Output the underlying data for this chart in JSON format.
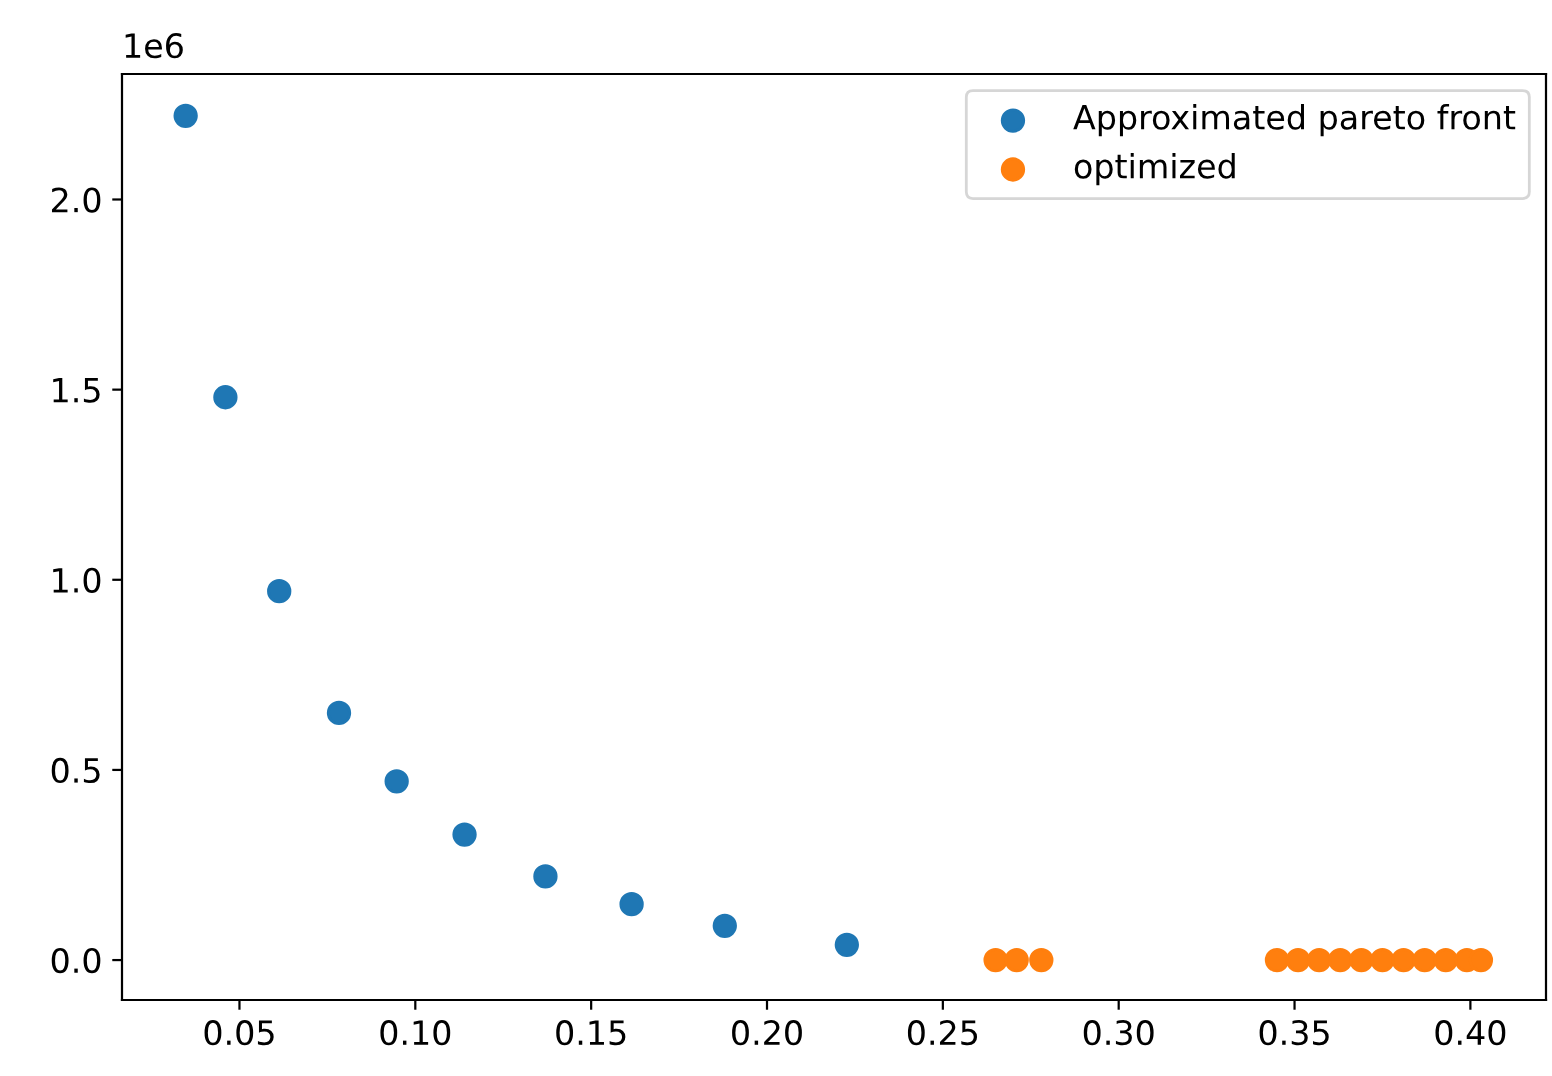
{
  "chart_data": {
    "type": "scatter",
    "annotations": [
      "1e6"
    ],
    "xlim": [
      0.0166,
      0.4215
    ],
    "xticks": [
      {
        "value": 0.05,
        "label": "0.05"
      },
      {
        "value": 0.1,
        "label": "0.10"
      },
      {
        "value": 0.15,
        "label": "0.15"
      },
      {
        "value": 0.2,
        "label": "0.20"
      },
      {
        "value": 0.25,
        "label": "0.25"
      },
      {
        "value": 0.3,
        "label": "0.30"
      },
      {
        "value": 0.35,
        "label": "0.35"
      },
      {
        "value": 0.4,
        "label": "0.40"
      }
    ],
    "ylim": [
      -0.105,
      2.33
    ],
    "yticks": [
      {
        "value": 0,
        "label": "0.0"
      },
      0.5,
      {
        "value": 1,
        "label": "1.0"
      },
      1.5,
      {
        "value": 2,
        "label": "2.0"
      }
    ],
    "grid": false,
    "legend": "top right",
    "marker": "circle",
    "series": [
      {
        "name": "Approximated pareto front",
        "color": "#1f77b4",
        "x": [
          0.0347,
          0.046,
          0.0613,
          0.0783,
          0.0947,
          0.114,
          0.137,
          0.1615,
          0.188,
          0.2227
        ],
        "values": [
          2.22,
          1.48,
          0.97,
          0.65,
          0.47,
          0.33,
          0.22,
          0.147,
          0.09,
          0.04
        ]
      },
      {
        "name": "optimized",
        "color": "#ff7f0e",
        "x": [
          0.265,
          0.271,
          0.278,
          0.345,
          0.351,
          0.357,
          0.363,
          0.369,
          0.375,
          0.381,
          0.387,
          0.393,
          0.399,
          0.403
        ],
        "values": [
          0,
          0,
          0,
          0,
          0,
          0,
          0,
          0,
          0,
          0,
          0,
          0,
          0,
          0
        ]
      }
    ]
  }
}
